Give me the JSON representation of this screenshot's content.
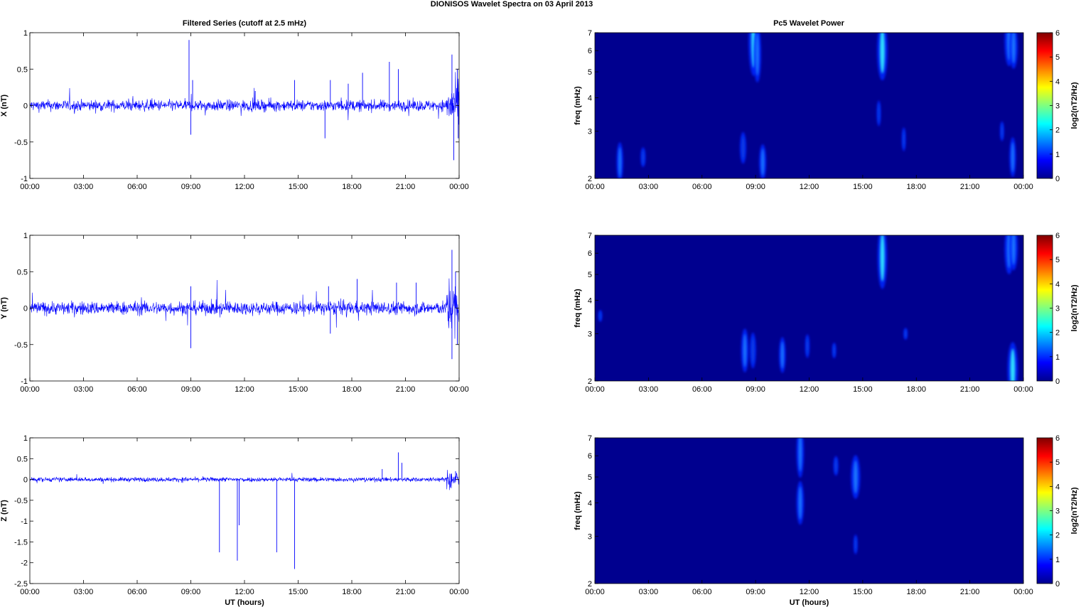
{
  "figure": {
    "title": "DIONISOS Wavelet Spectra on 03 April     2013",
    "left_title": "Filtered Series (cutoff at 2.5 mHz)",
    "right_title": "Pc5 Wavelet Power"
  },
  "x_tick_labels": [
    "00:00",
    "03:00",
    "06:00",
    "09:00",
    "12:00",
    "15:00",
    "18:00",
    "21:00",
    "00:00"
  ],
  "xlabel": "UT (hours)",
  "freq_ylabel": "freq (mHz)",
  "freq_tick_labels": [
    "2",
    "3",
    "4",
    "5",
    "6",
    "7"
  ],
  "colorbar_label": "log2(nT2/Hz)",
  "colorbar_tick_labels": [
    "0",
    "1",
    "2",
    "3",
    "4",
    "5",
    "6"
  ],
  "colors": {
    "trace": "#0000ff",
    "spectrum_background": "#00008f"
  },
  "chart_data": [
    {
      "type": "line",
      "title": "Filtered Series (cutoff at 2.5 mHz)",
      "ylabel": "X (nT)",
      "xlim": [
        0,
        24
      ],
      "ylim": [
        -1,
        1
      ],
      "y_tick_labels": [
        "-1",
        "-0.5",
        "0",
        "0.5",
        "1"
      ],
      "noise_amplitude": 0.05,
      "spikes": [
        [
          8.9,
          0.9
        ],
        [
          9.0,
          -0.4
        ],
        [
          9.1,
          0.35
        ],
        [
          12.6,
          0.2
        ],
        [
          14.8,
          0.35
        ],
        [
          16.5,
          -0.45
        ],
        [
          16.8,
          0.35
        ],
        [
          17.8,
          0.3
        ],
        [
          18.6,
          0.45
        ],
        [
          20.1,
          0.6
        ],
        [
          20.6,
          0.5
        ],
        [
          23.6,
          0.7
        ],
        [
          23.7,
          -0.75
        ],
        [
          23.9,
          0.5
        ],
        [
          23.95,
          -0.45
        ]
      ]
    },
    {
      "type": "line",
      "ylabel": "Y (nT)",
      "xlim": [
        0,
        24
      ],
      "ylim": [
        -1,
        1
      ],
      "y_tick_labels": [
        "-1",
        "-0.5",
        "0",
        "0.5",
        "1"
      ],
      "noise_amplitude": 0.06,
      "spikes": [
        [
          9.0,
          -0.55
        ],
        [
          9.0,
          0.3
        ],
        [
          16.7,
          0.3
        ],
        [
          16.8,
          -0.35
        ],
        [
          18.3,
          0.4
        ],
        [
          20.5,
          0.35
        ],
        [
          21.6,
          0.35
        ],
        [
          23.6,
          0.8
        ],
        [
          23.6,
          -0.7
        ],
        [
          23.8,
          0.5
        ],
        [
          23.9,
          -0.5
        ]
      ]
    },
    {
      "type": "line",
      "ylabel": "Z (nT)",
      "xlabel": "UT (hours)",
      "xlim": [
        0,
        24
      ],
      "ylim": [
        -2.5,
        1
      ],
      "y_tick_labels": [
        "-2.5",
        "-2",
        "-1.5",
        "-1",
        "-0.5",
        "0",
        "0.5",
        "1"
      ],
      "noise_amplitude": 0.035,
      "spikes": [
        [
          10.6,
          -1.75
        ],
        [
          11.6,
          -1.95
        ],
        [
          11.7,
          -1.1
        ],
        [
          13.8,
          -1.75
        ],
        [
          14.8,
          -2.15
        ],
        [
          20.6,
          0.65
        ],
        [
          20.8,
          0.4
        ],
        [
          19.7,
          0.25
        ],
        [
          23.8,
          0.2
        ]
      ]
    },
    {
      "type": "heatmap",
      "title": "Pc5 Wavelet Power",
      "ylabel": "freq (mHz)",
      "xlim": [
        0,
        24
      ],
      "ylim": [
        2,
        7
      ],
      "y_scale": "log",
      "colorbar": {
        "label": "log2(nT2/Hz)",
        "range": [
          0,
          6
        ],
        "colormap": "jet"
      },
      "features": [
        [
          1.4,
          2.3,
          2.0,
          1.6
        ],
        [
          2.7,
          2.4,
          1.0,
          1.2
        ],
        [
          8.3,
          2.6,
          1.6,
          1.5
        ],
        [
          8.9,
          6.5,
          3.5,
          2.5
        ],
        [
          9.1,
          5.8,
          2.8,
          1.8
        ],
        [
          9.4,
          2.3,
          1.8,
          1.7
        ],
        [
          16.1,
          6.0,
          3.0,
          2.5
        ],
        [
          15.9,
          3.5,
          1.3,
          1.0
        ],
        [
          17.3,
          2.8,
          1.2,
          0.9
        ],
        [
          22.8,
          3.0,
          1.0,
          1.0
        ],
        [
          23.2,
          6.5,
          2.5,
          2.2
        ],
        [
          23.45,
          6.2,
          2.2,
          2.0
        ],
        [
          23.4,
          2.4,
          2.0,
          1.6
        ]
      ]
    },
    {
      "type": "heatmap",
      "ylabel": "freq (mHz)",
      "xlim": [
        0,
        24
      ],
      "ylim": [
        2,
        7
      ],
      "y_scale": "log",
      "colorbar": {
        "label": "log2(nT2/Hz)",
        "range": [
          0,
          6
        ],
        "colormap": "jet"
      },
      "features": [
        [
          0.3,
          3.5,
          0.6,
          0.7
        ],
        [
          8.4,
          2.6,
          2.2,
          1.8
        ],
        [
          8.85,
          2.6,
          1.8,
          1.5
        ],
        [
          10.5,
          2.5,
          1.8,
          1.6
        ],
        [
          11.9,
          2.7,
          1.2,
          1.1
        ],
        [
          13.4,
          2.6,
          0.8,
          0.8
        ],
        [
          16.1,
          5.8,
          3.2,
          2.3
        ],
        [
          17.4,
          3.0,
          0.6,
          0.6
        ],
        [
          23.2,
          6.2,
          2.5,
          2.2
        ],
        [
          23.45,
          6.3,
          2.3,
          2.0
        ],
        [
          23.4,
          2.2,
          2.8,
          2.5
        ]
      ]
    },
    {
      "type": "heatmap",
      "xlabel": "UT (hours)",
      "ylabel": "freq (mHz)",
      "xlim": [
        0,
        24
      ],
      "ylim": [
        2,
        7
      ],
      "y_scale": "log",
      "colorbar": {
        "label": "log2(nT2/Hz)",
        "range": [
          0,
          6
        ],
        "colormap": "jet"
      },
      "features": [
        [
          11.5,
          6.2,
          2.6,
          1.8
        ],
        [
          11.5,
          4.0,
          2.2,
          1.8
        ],
        [
          13.5,
          5.5,
          1.0,
          1.2
        ],
        [
          14.6,
          5.0,
          2.2,
          2.2
        ],
        [
          14.6,
          2.8,
          1.0,
          1.0
        ]
      ]
    }
  ]
}
